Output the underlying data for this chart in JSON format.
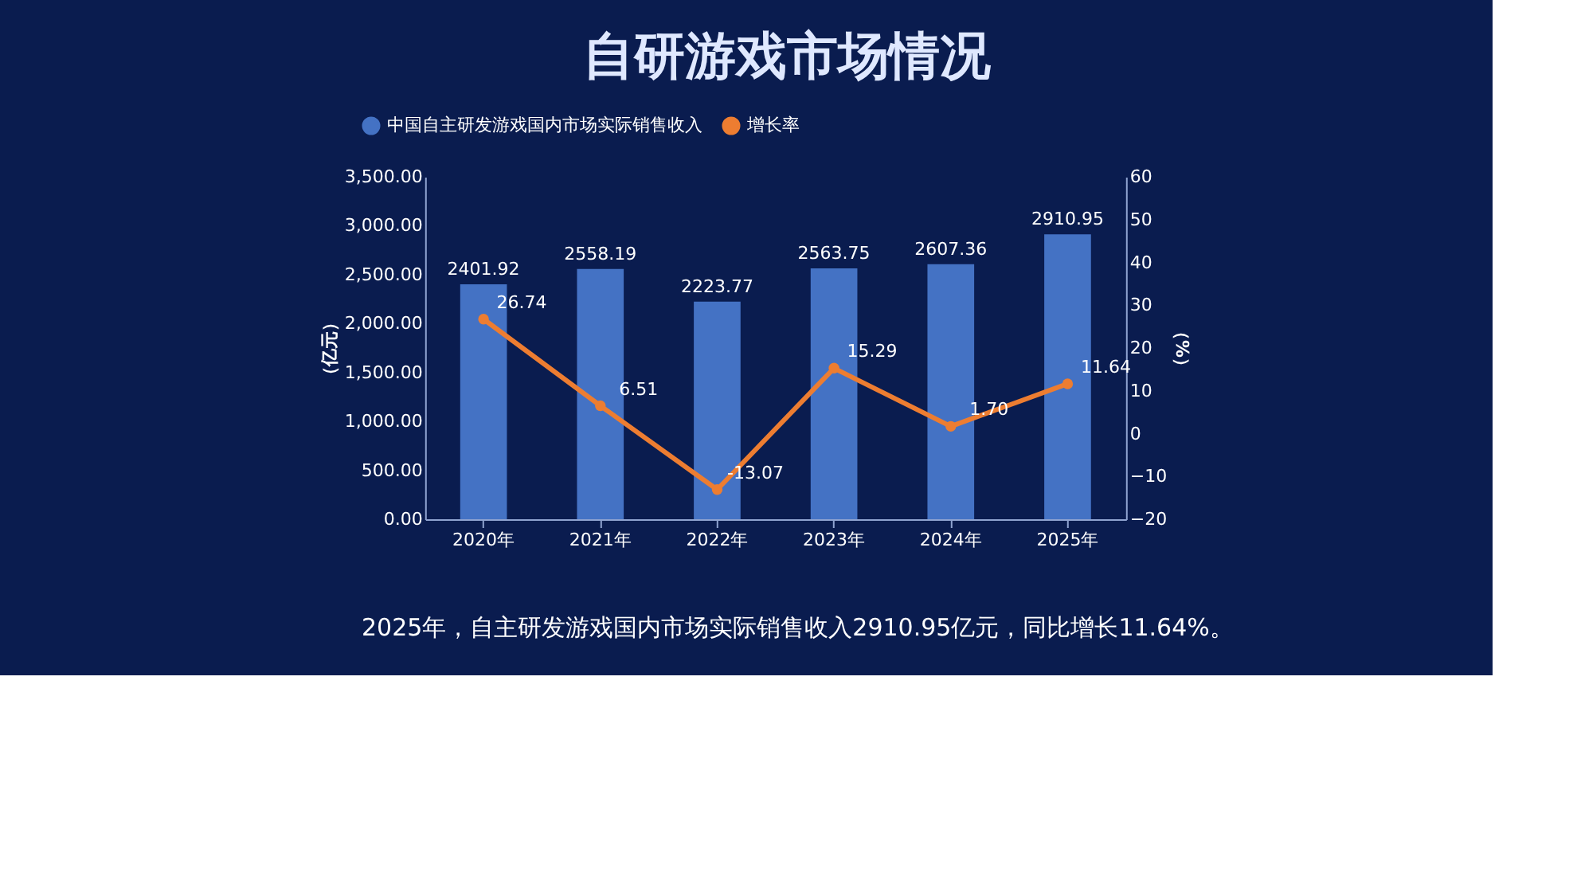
{
  "chart_data": {
    "type": "bar",
    "title": "自研游戏市场情况",
    "categories": [
      "2020年",
      "2021年",
      "2022年",
      "2023年",
      "2024年",
      "2025年"
    ],
    "series": [
      {
        "name": "中国自主研发游戏国内市场实际销售收入",
        "color": "#4472c4",
        "values": [
          2401.92,
          2558.19,
          2223.77,
          2563.75,
          2607.36,
          2910.95
        ],
        "value_labels": [
          "2401.92",
          "2558.19",
          "2223.77",
          "2563.75",
          "2607.36",
          "2910.95"
        ]
      },
      {
        "name": "增长率",
        "type": "line",
        "axis": "y2",
        "color": "#ed7d31",
        "values": [
          26.74,
          6.51,
          -13.07,
          15.29,
          1.7,
          11.64
        ],
        "value_labels": [
          "26.74",
          "6.51",
          "-13.07",
          "15.29",
          "1.70",
          "11.64"
        ]
      }
    ],
    "ylabel": "（亿元）",
    "y2label": "（%）",
    "ylim": [
      0,
      3500
    ],
    "yticks": [
      {
        "value": 0,
        "label": "0.00"
      },
      {
        "value": 500,
        "label": "500.00"
      },
      {
        "value": 1000,
        "label": "1,000.00"
      },
      {
        "value": 1500,
        "label": "1,500.00"
      },
      {
        "value": 2000,
        "label": "2,000.00"
      },
      {
        "value": 2500,
        "label": "2,500.00"
      },
      {
        "value": 3000,
        "label": "3,000.00"
      },
      {
        "value": 3500,
        "label": "3,500.00"
      }
    ],
    "y2lim": [
      -20,
      60
    ],
    "y2ticks": [
      -20,
      -10,
      0,
      10,
      20,
      30,
      40,
      50,
      60
    ],
    "legend": "top",
    "marker": "circle",
    "line_style": "solid",
    "grid": false,
    "annotations": [
      "2025年，自主研发游戏国内市场实际销售收入2910.95亿元，同比增长11.64%。"
    ]
  }
}
